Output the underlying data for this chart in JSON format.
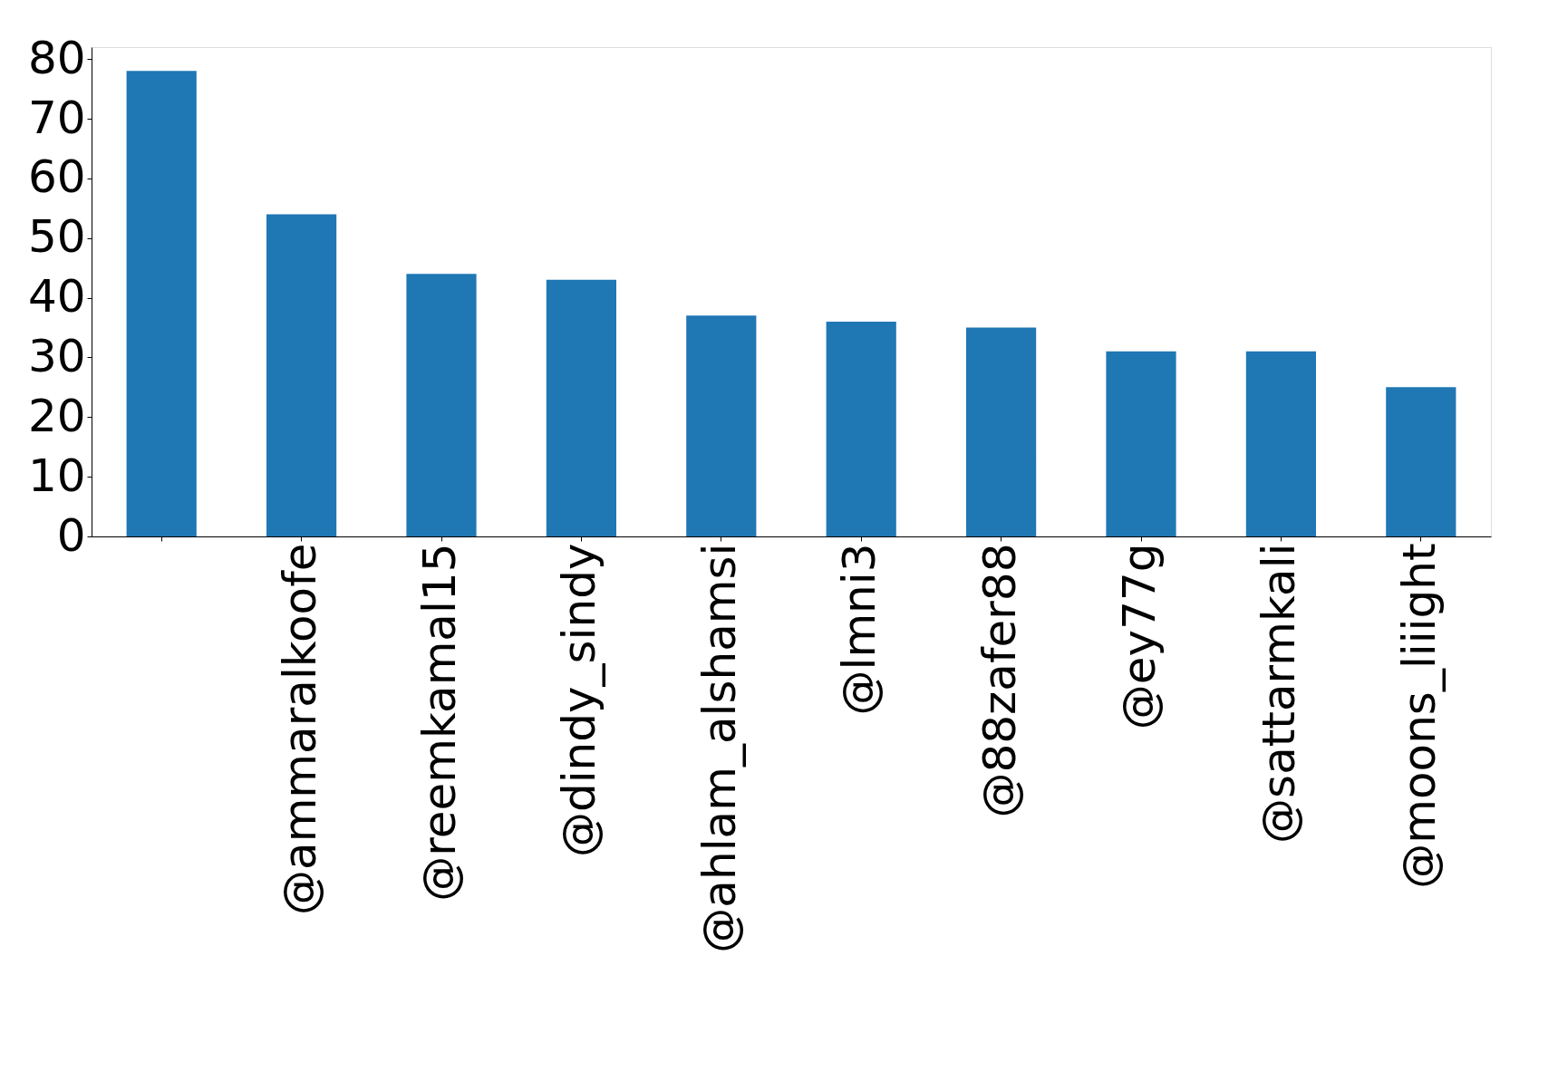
{
  "chart_data": {
    "type": "bar",
    "categories": [
      null,
      "@ammaralkoofe",
      "@reemkamal15",
      "@dindy_sindy",
      "@ahlam_alshamsi",
      "@lmni3",
      "@88zafer88",
      "@ey77g",
      "@sattarmkali",
      "@moons_liiight"
    ],
    "values": [
      78,
      54,
      44,
      43,
      37,
      36,
      35,
      31,
      31,
      25
    ],
    "color": "#1f77b4",
    "ylim": [
      0,
      82
    ],
    "yticks": [
      0,
      10,
      20,
      30,
      40,
      50,
      60,
      70,
      80
    ],
    "grid": false
  }
}
